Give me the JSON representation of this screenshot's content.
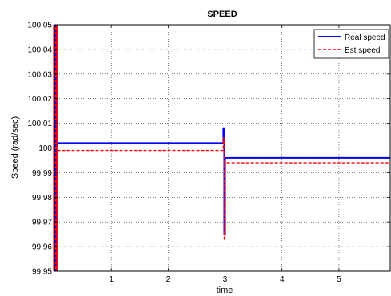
{
  "chart_data": {
    "type": "line",
    "title": "SPEED",
    "xlabel": "time",
    "ylabel": "Speed (rad/sec)",
    "xlim": [
      0,
      5.9
    ],
    "ylim": [
      99.95,
      100.05
    ],
    "xticks": [
      1,
      2,
      3,
      4,
      5
    ],
    "xtick_labels": [
      "1",
      "2",
      "3",
      "4",
      "5"
    ],
    "yticks": [
      99.95,
      99.96,
      99.97,
      99.98,
      99.99,
      100,
      100.01,
      100.02,
      100.03,
      100.04,
      100.05
    ],
    "ytick_labels": [
      "99.95",
      "99.96",
      "99.97",
      "99.98",
      "99.99",
      "100",
      "100.01",
      "100.02",
      "100.03",
      "100.04",
      "100.05"
    ],
    "grid": true,
    "legend_position": "top-right",
    "series": [
      {
        "name": "Real speed",
        "color": "#0000ff",
        "style": "solid",
        "x": [
          0.05,
          2.97,
          2.97,
          2.985,
          2.985,
          3.0,
          3.0,
          3.02,
          3.02,
          5.9
        ],
        "y": [
          100.002,
          100.002,
          100.008,
          100.008,
          99.965,
          99.965,
          99.996,
          99.996,
          99.996,
          99.996
        ]
      },
      {
        "name": "Est speed",
        "color": "#ff0000",
        "style": "dashed",
        "x": [
          0.05,
          2.97,
          2.97,
          2.985,
          2.985,
          3.0,
          3.0,
          5.9
        ],
        "y": [
          99.999,
          99.999,
          100.004,
          100.004,
          99.963,
          99.963,
          99.994,
          99.994
        ]
      }
    ],
    "startup_transient": {
      "x": 0.02,
      "colors": [
        "#ff0000",
        "#0000ff"
      ]
    }
  }
}
